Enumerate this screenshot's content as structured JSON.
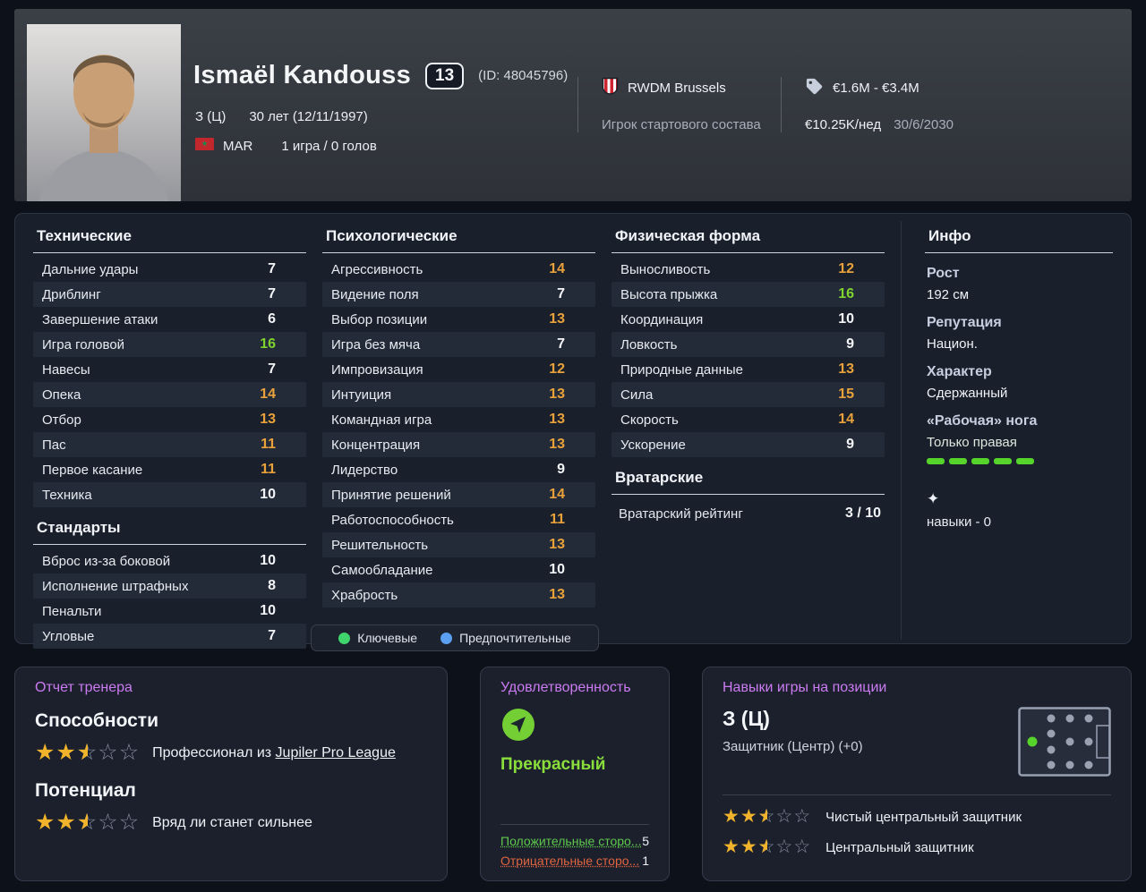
{
  "header": {
    "name": "Ismaël Kandouss",
    "number": "13",
    "id_text": "(ID: 48045796)",
    "position": "З (Ц)",
    "age_text": "30 лет (12/11/1997)",
    "nation": "MAR",
    "apps_text": "1 игра / 0 голов",
    "club": "RWDM Brussels",
    "role": "Игрок стартового состава",
    "value": "€1.6M - €3.4M",
    "wage": "€10.25K/нед",
    "contract_end": "30/6/2030"
  },
  "attributes": {
    "technical": {
      "title": "Технические",
      "items": [
        {
          "label": "Дальние удары",
          "value": 7
        },
        {
          "label": "Дриблинг",
          "value": 7
        },
        {
          "label": "Завершение атаки",
          "value": 6
        },
        {
          "label": "Игра головой",
          "value": 16
        },
        {
          "label": "Навесы",
          "value": 7
        },
        {
          "label": "Опека",
          "value": 14
        },
        {
          "label": "Отбор",
          "value": 13
        },
        {
          "label": "Пас",
          "value": 11
        },
        {
          "label": "Первое касание",
          "value": 11
        },
        {
          "label": "Техника",
          "value": 10
        }
      ]
    },
    "set_pieces": {
      "title": "Стандарты",
      "items": [
        {
          "label": "Вброс из-за боковой",
          "value": 10
        },
        {
          "label": "Исполнение штрафных",
          "value": 8
        },
        {
          "label": "Пенальти",
          "value": 10
        },
        {
          "label": "Угловые",
          "value": 7
        }
      ]
    },
    "mental": {
      "title": "Психологические",
      "items": [
        {
          "label": "Агрессивность",
          "value": 14
        },
        {
          "label": "Видение поля",
          "value": 7
        },
        {
          "label": "Выбор позиции",
          "value": 13
        },
        {
          "label": "Игра без мяча",
          "value": 7
        },
        {
          "label": "Импровизация",
          "value": 12
        },
        {
          "label": "Интуиция",
          "value": 13
        },
        {
          "label": "Командная игра",
          "value": 13
        },
        {
          "label": "Концентрация",
          "value": 13
        },
        {
          "label": "Лидерство",
          "value": 9
        },
        {
          "label": "Принятие решений",
          "value": 14
        },
        {
          "label": "Работоспособность",
          "value": 11
        },
        {
          "label": "Решительность",
          "value": 13
        },
        {
          "label": "Самообладание",
          "value": 10
        },
        {
          "label": "Храбрость",
          "value": 13
        }
      ]
    },
    "physical": {
      "title": "Физическая форма",
      "items": [
        {
          "label": "Выносливость",
          "value": 12
        },
        {
          "label": "Высота прыжка",
          "value": 16
        },
        {
          "label": "Координация",
          "value": 10
        },
        {
          "label": "Ловкость",
          "value": 9
        },
        {
          "label": "Природные данные",
          "value": 13
        },
        {
          "label": "Сила",
          "value": 15
        },
        {
          "label": "Скорость",
          "value": 14
        },
        {
          "label": "Ускорение",
          "value": 9
        }
      ]
    },
    "goalkeeping": {
      "title": "Вратарские",
      "rating_label": "Вратарский рейтинг",
      "rating_value": "3 / 10"
    }
  },
  "legend": {
    "key_label": "Ключевые",
    "preferred_label": "Предпочтительные"
  },
  "info": {
    "title": "Инфо",
    "height_label": "Рост",
    "height_value": "192 см",
    "reputation_label": "Репутация",
    "reputation_value": "Национ.",
    "personality_label": "Характер",
    "personality_value": "Сдержанный",
    "foot_label": "«Рабочая» нога",
    "foot_value": "Только правая",
    "skills_text": "навыки - 0"
  },
  "coach_report": {
    "title": "Отчет тренера",
    "ability_label": "Способности",
    "ability_stars": 2.5,
    "ability_text": "Профессионал из",
    "ability_link": "Jupiler Pro League",
    "potential_label": "Потенциал",
    "potential_stars": 2.5,
    "potential_text": "Вряд ли станет сильнее"
  },
  "satisfaction": {
    "title": "Удовлетворенность",
    "status": "Прекрасный",
    "positive_label": "Положительные сторо...",
    "positive_value": "5",
    "negative_label": "Отрицательные сторо...",
    "negative_value": "1"
  },
  "positions": {
    "title": "Навыки игры на позиции",
    "code": "З (Ц)",
    "desc": "Защитник (Центр) (+0)",
    "roles": [
      {
        "stars": 2.5,
        "label": "Чистый центральный защитник"
      },
      {
        "stars": 2.5,
        "label": "Центральный защитник"
      }
    ]
  },
  "colors": {
    "bg": "#0d1119",
    "panel": "#1a202b",
    "row-alt": "#242b38",
    "attr-mid": "#e9a23b",
    "attr-high": "#7ed32f",
    "accent": "#cb7bf2",
    "star": "#f1b32b",
    "positive": "#5fc94c",
    "negative": "#e0653f",
    "sat-green": "#8ade3c",
    "footbar": "#57d42c",
    "legend-key": "#3fd46c",
    "legend-pref": "#5a9ff0"
  }
}
